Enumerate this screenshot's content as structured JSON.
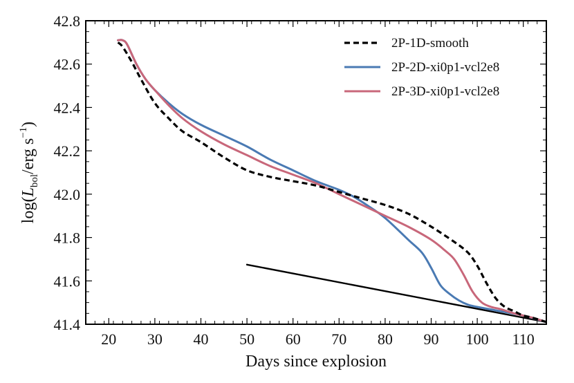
{
  "chart_data": {
    "type": "line",
    "title": "",
    "xlabel": "Days since explosion",
    "ylabel": "log(L_bol / erg s^-1)",
    "ylabel_parts": {
      "pre": "log(",
      "L": "L",
      "sub": "bol",
      "mid": "/erg s",
      "sup": "−1",
      "post": ")"
    },
    "xlim": [
      15,
      115
    ],
    "ylim": [
      41.4,
      42.8
    ],
    "xticks": [
      20,
      30,
      40,
      50,
      60,
      70,
      80,
      90,
      100,
      110
    ],
    "xtick_labels": [
      "20",
      "30",
      "40",
      "50",
      "60",
      "70",
      "80",
      "90",
      "100",
      "110"
    ],
    "yticks": [
      41.4,
      41.6,
      41.8,
      42.0,
      42.2,
      42.4,
      42.6,
      42.8
    ],
    "ytick_labels": [
      "41.4",
      "41.6",
      "41.8",
      "42.0",
      "42.2",
      "42.4",
      "42.6",
      "42.8"
    ],
    "legend_position": "top-right",
    "series": [
      {
        "name": "2P-1D-smooth",
        "color": "#000000",
        "style": "dashed",
        "x": [
          22,
          23,
          25,
          27,
          30,
          33,
          36,
          40,
          45,
          50,
          55,
          60,
          65,
          70,
          75,
          80,
          85,
          90,
          95,
          98,
          100,
          102,
          104,
          106,
          108,
          110,
          112,
          115
        ],
        "y": [
          42.7,
          42.68,
          42.61,
          42.53,
          42.42,
          42.35,
          42.29,
          42.24,
          42.17,
          42.11,
          42.08,
          42.06,
          42.04,
          42.01,
          41.98,
          41.95,
          41.91,
          41.85,
          41.78,
          41.73,
          41.67,
          41.59,
          41.52,
          41.48,
          41.46,
          41.44,
          41.43,
          41.41
        ]
      },
      {
        "name": "2P-2D-xi0p1-vcl2e8",
        "color": "#4a7ab3",
        "style": "solid",
        "x": [
          22,
          23,
          24,
          26,
          28,
          30,
          33,
          36,
          40,
          45,
          50,
          55,
          60,
          65,
          70,
          73,
          76,
          80,
          85,
          88,
          90,
          92,
          94,
          96,
          98,
          100,
          105,
          110,
          115
        ],
        "y": [
          42.71,
          42.71,
          42.69,
          42.6,
          42.53,
          42.48,
          42.42,
          42.37,
          42.32,
          42.27,
          42.22,
          42.16,
          42.11,
          42.06,
          42.02,
          41.99,
          41.95,
          41.89,
          41.79,
          41.73,
          41.66,
          41.58,
          41.54,
          41.51,
          41.49,
          41.48,
          41.46,
          41.44,
          41.41
        ]
      },
      {
        "name": "2P-3D-xi0p1-vcl2e8",
        "color": "#c8677a",
        "style": "solid",
        "x": [
          22,
          23,
          24,
          26,
          28,
          30,
          33,
          36,
          40,
          45,
          50,
          55,
          60,
          65,
          70,
          75,
          80,
          85,
          90,
          93,
          95,
          97,
          99,
          101,
          103,
          105,
          108,
          110,
          112,
          115
        ],
        "y": [
          42.71,
          42.71,
          42.69,
          42.6,
          42.53,
          42.48,
          42.41,
          42.35,
          42.29,
          42.23,
          42.18,
          42.13,
          42.09,
          42.05,
          42.0,
          41.95,
          41.9,
          41.85,
          41.79,
          41.74,
          41.7,
          41.63,
          41.55,
          41.5,
          41.48,
          41.47,
          41.45,
          41.44,
          41.43,
          41.41
        ]
      },
      {
        "name": "reference line",
        "color": "#000000",
        "style": "solid",
        "legend": false,
        "x": [
          50,
          115
        ],
        "y": [
          41.675,
          41.41
        ]
      }
    ]
  }
}
